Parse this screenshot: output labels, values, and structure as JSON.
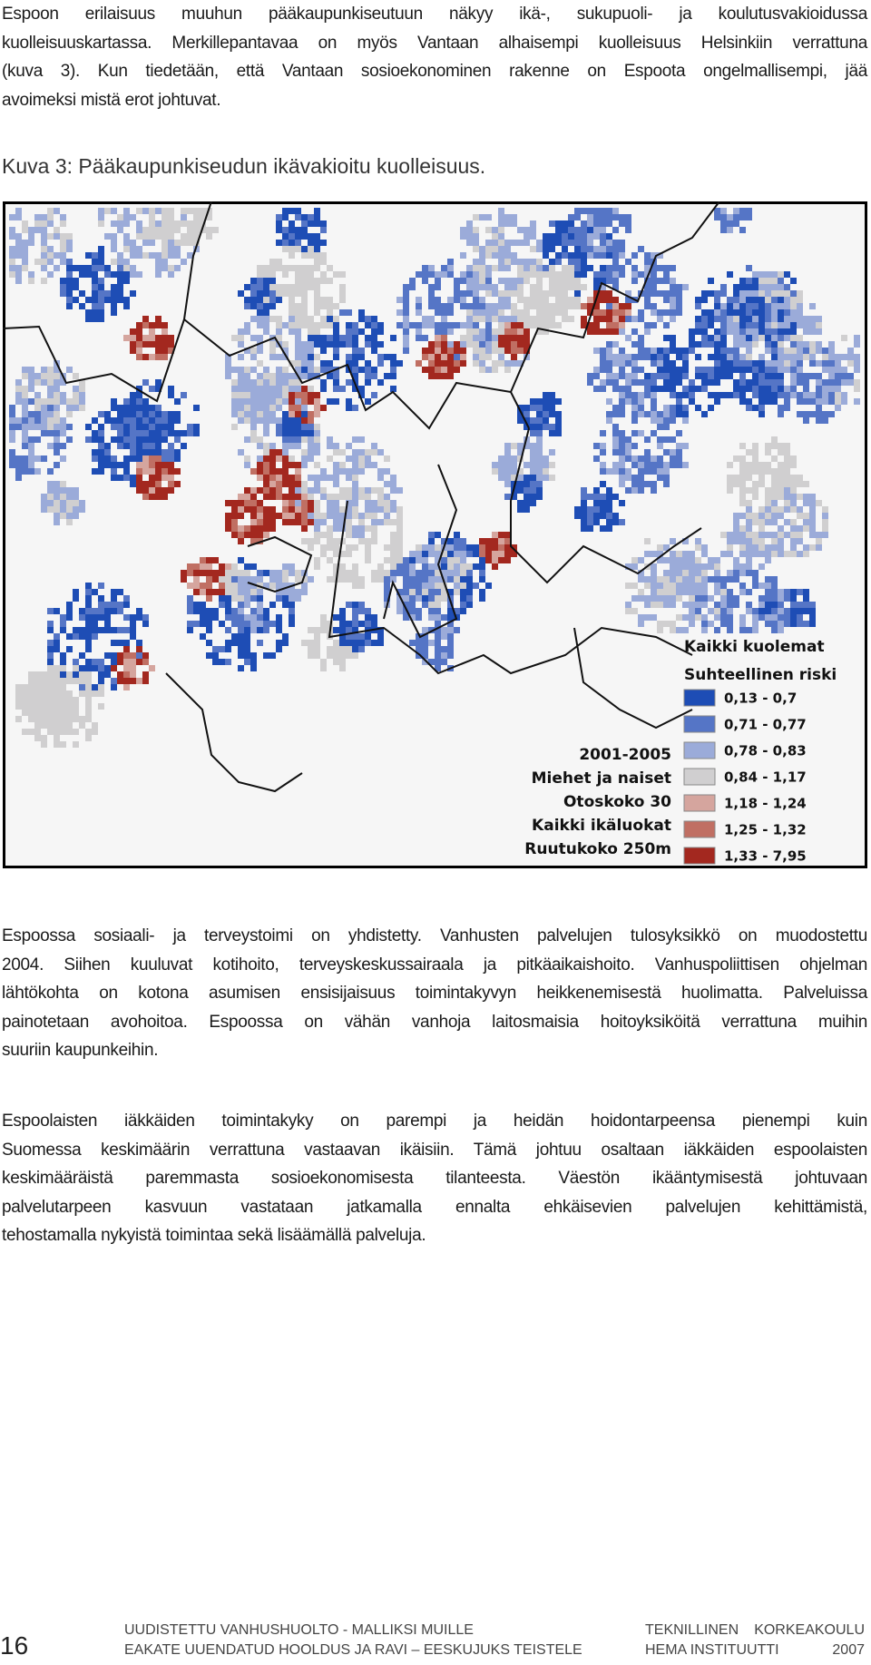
{
  "paragraph1": [
    "Espoon erilaisuus muuhun pääkaupunkiseutuun näkyy ikä-, sukupuoli- ja koulutusvakioidussa",
    "kuolleisuuskartassa. Merkillepantavaa on myös Vantaan alhaisempi kuolleisuus Helsinkiin verrattuna",
    "(kuva 3). Kun tiedetään, että Vantaan sosioekonominen rakenne on Espoota ongelmallisempi, jää",
    "avoimeksi mistä erot johtuvat."
  ],
  "caption": "Kuva 3: Pääkaupunkiseudun ikävakioitu kuolleisuus.",
  "map": {
    "legend": {
      "title": "Kaikki kuolemat",
      "subtitle": "Suhteellinen riski",
      "items": [
        {
          "label": "0,13 - 0,7",
          "color": "#1e4db5"
        },
        {
          "label": "0,71 - 0,77",
          "color": "#5575c6"
        },
        {
          "label": "0,78 - 0,83",
          "color": "#9babd9"
        },
        {
          "label": "0,84 - 1,17",
          "color": "#d0cfd0"
        },
        {
          "label": "1,18 - 1,24",
          "color": "#d5a59e"
        },
        {
          "label": "1,25 - 1,32",
          "color": "#c06f63"
        },
        {
          "label": "1,33 - 7,95",
          "color": "#a3281f"
        }
      ]
    },
    "info": [
      "2001-2005",
      "Miehet ja naiset",
      "Otoskoko 30",
      "Kaikki ikäluokat",
      "Ruutukoko 250m"
    ]
  },
  "paragraph2": [
    "Espoossa sosiaali- ja terveystoimi on yhdistetty. Vanhusten palvelujen tulosyksikkö on muodostettu",
    "2004. Siihen kuuluvat kotihoito, terveyskeskussairaala ja pitkäaikaishoito. Vanhuspoliittisen ohjelman",
    "lähtökohta on kotona asumisen ensisijaisuus toimintakyvyn heikkenemisestä huolimatta. Palveluissa",
    "painotetaan avohoitoa. Espoossa on vähän vanhoja laitosmaisia hoitoyksiköitä verrattuna muihin",
    "suuriin kaupunkeihin."
  ],
  "paragraph3": [
    "Espoolaisten iäkkäiden toimintakyky on parempi ja heidän hoidontarpeensa pienempi kuin",
    "Suomessa keskimäärin verrattuna vastaavan ikäisiin. Tämä johtuu osaltaan iäkkäiden espoolaisten",
    "keskimääräistä paremmasta sosioekonomisesta tilanteesta. Väestön ikääntymisestä johtuvaan",
    "palvelutarpeen kasvuun vastataan jatkamalla ennalta ehkäisevien palvelujen kehittämistä,",
    "tehostamalla nykyistä toimintaa sekä lisäämällä palveluja."
  ],
  "footer": {
    "page": "16",
    "center": [
      "UUDISTETTU VANHUSHUOLTO - MALLIKSI MUILLE",
      "EAKATE UUENDATUD HOOLDUS JA RAVI – EESKUJUKS TEISTELE"
    ],
    "right": [
      "TEKNILLINEN",
      "KORKEAKOULU",
      "HEMA INSTITUUTTI",
      "2007"
    ]
  }
}
